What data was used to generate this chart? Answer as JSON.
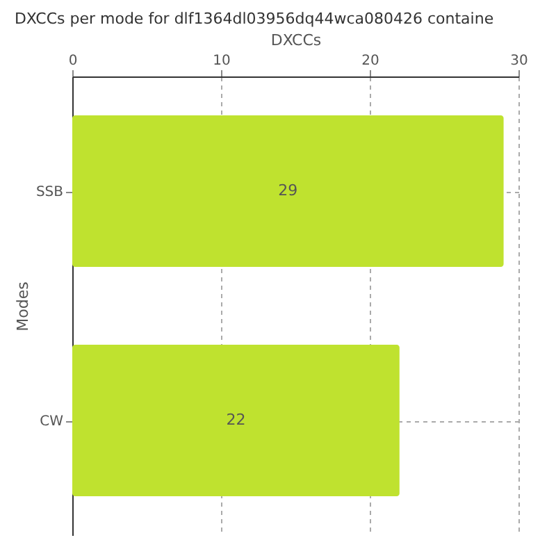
{
  "chart_data": {
    "type": "bar",
    "orientation": "horizontal",
    "title": "DXCCs per mode for dlf1364dl03956dq44wca080426 containe",
    "xlabel": "DXCCs",
    "ylabel": "Modes",
    "categories": [
      "SSB",
      "CW"
    ],
    "values": [
      29,
      22
    ],
    "color": "#bfe22f",
    "xlim": [
      0,
      30
    ],
    "xticks": [
      0,
      10,
      20,
      30
    ],
    "grid": true,
    "data_labels": true
  }
}
